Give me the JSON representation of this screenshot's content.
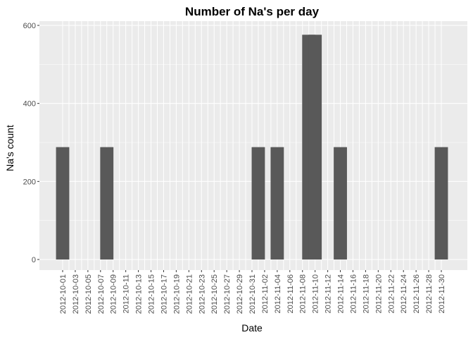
{
  "colors": {
    "panel_background": "#ebebeb",
    "grid_major": "#ffffff",
    "bar_fill": "#595959",
    "tick_text": "#4d4d4d",
    "title_text": "#000000"
  },
  "chart_data": {
    "type": "bar",
    "title": "Number of Na's per day",
    "xlabel": "Date",
    "ylabel": "Na's count",
    "ylim": [
      0,
      600
    ],
    "yticks": [
      0,
      200,
      400,
      600
    ],
    "grid": true,
    "legend": "none",
    "categories": [
      "2012-10-01",
      "2012-10-02",
      "2012-10-03",
      "2012-10-04",
      "2012-10-05",
      "2012-10-06",
      "2012-10-07",
      "2012-10-08",
      "2012-10-09",
      "2012-10-10",
      "2012-10-11",
      "2012-10-12",
      "2012-10-13",
      "2012-10-14",
      "2012-10-15",
      "2012-10-16",
      "2012-10-17",
      "2012-10-18",
      "2012-10-19",
      "2012-10-20",
      "2012-10-21",
      "2012-10-22",
      "2012-10-23",
      "2012-10-24",
      "2012-10-25",
      "2012-10-26",
      "2012-10-27",
      "2012-10-28",
      "2012-10-29",
      "2012-10-30",
      "2012-10-31",
      "2012-11-01",
      "2012-11-02",
      "2012-11-03",
      "2012-11-04",
      "2012-11-05",
      "2012-11-06",
      "2012-11-07",
      "2012-11-08",
      "2012-11-09",
      "2012-11-10",
      "2012-11-11",
      "2012-11-12",
      "2012-11-13",
      "2012-11-14",
      "2012-11-15",
      "2012-11-16",
      "2012-11-17",
      "2012-11-18",
      "2012-11-19",
      "2012-11-20",
      "2012-11-21",
      "2012-11-22",
      "2012-11-23",
      "2012-11-24",
      "2012-11-25",
      "2012-11-26",
      "2012-11-27",
      "2012-11-28",
      "2012-11-29",
      "2012-11-30"
    ],
    "x_tick_labels": [
      "2012-10-01",
      "2012-10-03",
      "2012-10-05",
      "2012-10-07",
      "2012-10-09",
      "2012-10-11",
      "2012-10-13",
      "2012-10-15",
      "2012-10-17",
      "2012-10-19",
      "2012-10-21",
      "2012-10-23",
      "2012-10-25",
      "2012-10-27",
      "2012-10-29",
      "2012-10-31",
      "2012-11-02",
      "2012-11-04",
      "2012-11-06",
      "2012-11-08",
      "2012-11-10",
      "2012-11-12",
      "2012-11-14",
      "2012-11-16",
      "2012-11-18",
      "2012-11-20",
      "2012-11-22",
      "2012-11-24",
      "2012-11-26",
      "2012-11-28",
      "2012-11-30"
    ],
    "bars": [
      {
        "x": "2012-10-01",
        "value": 288
      },
      {
        "x": "2012-10-08",
        "value": 288
      },
      {
        "x": "2012-11-01",
        "value": 288
      },
      {
        "x": "2012-11-04",
        "value": 288
      },
      {
        "x": "2012-11-09",
        "value": 576
      },
      {
        "x": "2012-11-10",
        "value": 576
      },
      {
        "x": "2012-11-14",
        "value": 288
      },
      {
        "x": "2012-11-30",
        "value": 288
      }
    ]
  }
}
